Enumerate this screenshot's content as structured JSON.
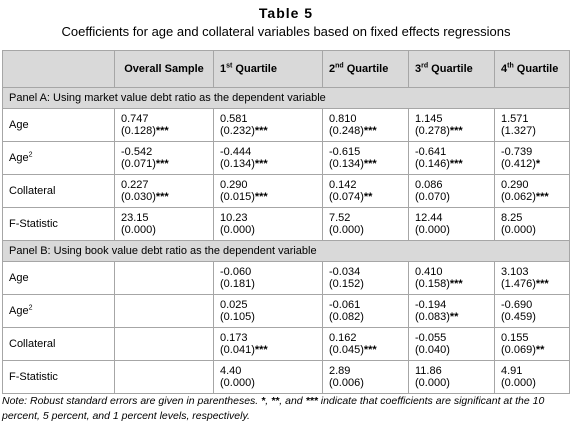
{
  "title": "Table 5",
  "subtitle": "Coefficients for age and collateral variables based on fixed effects regressions",
  "columns": {
    "label": "",
    "overall": "Overall Sample",
    "q1": "1",
    "q1_sup": "st",
    "q1_rest": " Quartile",
    "q2": "2",
    "q2_sup": "nd",
    "q2_rest": " Quartile",
    "q3": "3",
    "q3_sup": "rd",
    "q3_rest": " Quartile",
    "q4": "4",
    "q4_sup": "th",
    "q4_rest": " Quartile"
  },
  "panelA": {
    "title": "Panel A: Using market value debt ratio as the dependent variable",
    "rows": [
      {
        "label": "Age",
        "label_sup": "",
        "cells": [
          {
            "coef": "0.747",
            "se": "(0.128)",
            "stars": "***"
          },
          {
            "coef": "0.581",
            "se": "(0.232)",
            "stars": "***"
          },
          {
            "coef": "0.810",
            "se": "(0.248)",
            "stars": "***"
          },
          {
            "coef": "1.145",
            "se": "(0.278)",
            "stars": "***"
          },
          {
            "coef": "1.571",
            "se": "(1.327)",
            "stars": ""
          }
        ]
      },
      {
        "label": "Age",
        "label_sup": "2",
        "cells": [
          {
            "coef": "-0.542",
            "se": "(0.071)",
            "stars": "***"
          },
          {
            "coef": "-0.444",
            "se": "(0.134)",
            "stars": "***"
          },
          {
            "coef": "-0.615",
            "se": "(0.134)",
            "stars": "***"
          },
          {
            "coef": "-0.641",
            "se": "(0.146)",
            "stars": "***"
          },
          {
            "coef": "-0.739",
            "se": "(0.412)",
            "stars": "*"
          }
        ]
      },
      {
        "label": "Collateral",
        "label_sup": "",
        "cells": [
          {
            "coef": "0.227",
            "se": "(0.030)",
            "stars": "***"
          },
          {
            "coef": "0.290",
            "se": "(0.015)",
            "stars": "***"
          },
          {
            "coef": "0.142",
            "se": "(0.074)",
            "stars": "**"
          },
          {
            "coef": "0.086",
            "se": "(0.070)",
            "stars": ""
          },
          {
            "coef": "0.290",
            "se": "(0.062)",
            "stars": "***"
          }
        ]
      },
      {
        "label": "F-Statistic",
        "label_sup": "",
        "cells": [
          {
            "coef": "23.15",
            "se": "(0.000)",
            "stars": ""
          },
          {
            "coef": "10.23",
            "se": "(0.000)",
            "stars": ""
          },
          {
            "coef": "7.52",
            "se": "(0.000)",
            "stars": ""
          },
          {
            "coef": "12.44",
            "se": "(0.000)",
            "stars": ""
          },
          {
            "coef": "8.25",
            "se": "(0.000)",
            "stars": ""
          }
        ]
      }
    ]
  },
  "panelB": {
    "title": "Panel B: Using book value debt ratio as the dependent variable",
    "rows": [
      {
        "label": "Age",
        "label_sup": "",
        "cells": [
          {
            "coef": "",
            "se": "",
            "stars": ""
          },
          {
            "coef": "-0.060",
            "se": "(0.181)",
            "stars": ""
          },
          {
            "coef": "-0.034",
            "se": "(0.152)",
            "stars": ""
          },
          {
            "coef": "0.410",
            "se": "(0.158)",
            "stars": "***"
          },
          {
            "coef": "3.103",
            "se": "(1.476)",
            "stars": "***"
          }
        ]
      },
      {
        "label": "Age",
        "label_sup": "2",
        "cells": [
          {
            "coef": "",
            "se": "",
            "stars": ""
          },
          {
            "coef": "0.025",
            "se": "(0.105)",
            "stars": ""
          },
          {
            "coef": "-0.061",
            "se": "(0.082)",
            "stars": ""
          },
          {
            "coef": "-0.194",
            "se": "(0.083)",
            "stars": "**"
          },
          {
            "coef": "-0.690",
            "se": "(0.459)",
            "stars": ""
          }
        ]
      },
      {
        "label": "Collateral",
        "label_sup": "",
        "cells": [
          {
            "coef": "",
            "se": "",
            "stars": ""
          },
          {
            "coef": "0.173",
            "se": "(0.041)",
            "stars": "***"
          },
          {
            "coef": "0.162",
            "se": "(0.045)",
            "stars": "***"
          },
          {
            "coef": "-0.055",
            "se": "(0.040)",
            "stars": ""
          },
          {
            "coef": "0.155",
            "se": "(0.069)",
            "stars": "**"
          }
        ]
      },
      {
        "label": "F-Statistic",
        "label_sup": "",
        "cells": [
          {
            "coef": "",
            "se": "",
            "stars": ""
          },
          {
            "coef": "4.40",
            "se": "(0.000)",
            "stars": ""
          },
          {
            "coef": "2.89",
            "se": "(0.006)",
            "stars": ""
          },
          {
            "coef": "11.86",
            "se": "(0.000)",
            "stars": ""
          },
          {
            "coef": "4.91",
            "se": "(0.000)",
            "stars": ""
          }
        ]
      }
    ]
  },
  "note": {
    "part1": "Note: Robust standard errors are given in parentheses. ",
    "sym1": "*",
    "sep1": ", ",
    "sym2": "**",
    "sep2": ", and ",
    "sym3": "***",
    "part2": " indicate that coefficients are significant at the 10 percent, 5 percent, and 1 percent levels, respectively."
  }
}
